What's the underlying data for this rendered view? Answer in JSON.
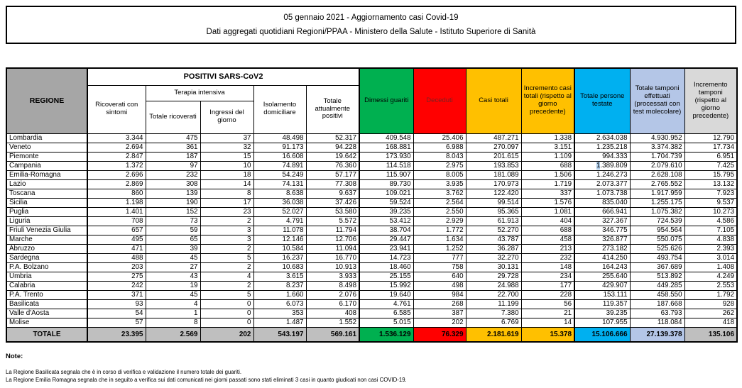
{
  "title": {
    "line1": "05 gennaio 2021 - Aggiornamento casi Covid-19",
    "line2": "Dati aggregati quotidiani Regioni/PPAA - Ministero della Salute - Istituto Superiore di Sanità"
  },
  "table": {
    "header": {
      "regione": "REGIONE",
      "positivi_group": "POSITIVI SARS-CoV2",
      "terapia_group": "Terapia intensiva",
      "ricoverati": "Ricoverati con sintomi",
      "totale_ricoverati": "Totale ricoverati",
      "ingressi": "Ingressi del giorno",
      "isolamento": "Isolamento domiciliare",
      "attualmente_positivi": "Totale attualmente positivi",
      "dimessi": "Dimessi guariti",
      "deceduti": "Deceduti",
      "casi_totali": "Casi totali",
      "incremento_casi": "Incremento casi totali (rispetto al giorno precedente)",
      "persone_testate": "Totale persone testate",
      "tamponi": "Totale tamponi effettuati (processati con test molecolare)",
      "incremento_tamponi": "Incremento tamponi (rispetto al giorno precedente)"
    },
    "rows": [
      {
        "regione": "Lombardia",
        "values": [
          "3.344",
          "475",
          "37",
          "48.498",
          "52.317",
          "409.548",
          "25.406",
          "487.271",
          "1.338",
          "2.634.038",
          "4.930.952",
          "12.790"
        ]
      },
      {
        "regione": "Veneto",
        "values": [
          "2.694",
          "361",
          "32",
          "91.173",
          "94.228",
          "168.881",
          "6.988",
          "270.097",
          "3.151",
          "1.235.218",
          "3.374.382",
          "17.734"
        ]
      },
      {
        "regione": "Piemonte",
        "values": [
          "2.847",
          "187",
          "15",
          "16.608",
          "19.642",
          "173.930",
          "8.043",
          "201.615",
          "1.109",
          "994.333",
          "1.704.739",
          "6.951"
        ]
      },
      {
        "regione": "Campania",
        "values": [
          "1.372",
          "97",
          "10",
          "74.891",
          "76.360",
          "114.518",
          "2.975",
          "193.853",
          "688",
          "1.389.809",
          "2.079.610",
          "7.425"
        ]
      },
      {
        "regione": "Emilia-Romagna",
        "values": [
          "2.696",
          "232",
          "18",
          "54.249",
          "57.177",
          "115.907",
          "8.005",
          "181.089",
          "1.506",
          "1.246.273",
          "2.628.108",
          "15.795"
        ]
      },
      {
        "regione": "Lazio",
        "values": [
          "2.869",
          "308",
          "14",
          "74.131",
          "77.308",
          "89.730",
          "3.935",
          "170.973",
          "1.719",
          "2.073.377",
          "2.765.552",
          "13.132"
        ]
      },
      {
        "regione": "Toscana",
        "values": [
          "860",
          "139",
          "8",
          "8.638",
          "9.637",
          "109.021",
          "3.762",
          "122.420",
          "337",
          "1.073.738",
          "1.917.959",
          "7.923"
        ]
      },
      {
        "regione": "Sicilia",
        "values": [
          "1.198",
          "190",
          "17",
          "36.038",
          "37.426",
          "59.524",
          "2.564",
          "99.514",
          "1.576",
          "835.040",
          "1.255.175",
          "9.537"
        ]
      },
      {
        "regione": "Puglia",
        "values": [
          "1.401",
          "152",
          "23",
          "52.027",
          "53.580",
          "39.235",
          "2.550",
          "95.365",
          "1.081",
          "666.941",
          "1.075.382",
          "10.273"
        ]
      },
      {
        "regione": "Liguria",
        "values": [
          "708",
          "73",
          "2",
          "4.791",
          "5.572",
          "53.412",
          "2.929",
          "61.913",
          "404",
          "327.367",
          "724.539",
          "4.586"
        ]
      },
      {
        "regione": "Friuli Venezia Giulia",
        "values": [
          "657",
          "59",
          "3",
          "11.078",
          "11.794",
          "38.704",
          "1.772",
          "52.270",
          "688",
          "346.775",
          "954.564",
          "7.105"
        ]
      },
      {
        "regione": "Marche",
        "values": [
          "495",
          "65",
          "3",
          "12.146",
          "12.706",
          "29.447",
          "1.634",
          "43.787",
          "458",
          "326.877",
          "550.075",
          "4.838"
        ]
      },
      {
        "regione": "Abruzzo",
        "values": [
          "471",
          "39",
          "2",
          "10.584",
          "11.094",
          "23.941",
          "1.252",
          "36.287",
          "213",
          "273.182",
          "525.626",
          "2.393"
        ]
      },
      {
        "regione": "Sardegna",
        "values": [
          "488",
          "45",
          "5",
          "16.237",
          "16.770",
          "14.723",
          "777",
          "32.270",
          "232",
          "414.250",
          "493.754",
          "3.014"
        ]
      },
      {
        "regione": "P.A. Bolzano",
        "values": [
          "203",
          "27",
          "2",
          "10.683",
          "10.913",
          "18.460",
          "758",
          "30.131",
          "148",
          "164.243",
          "367.689",
          "1.408"
        ]
      },
      {
        "regione": "Umbria",
        "values": [
          "275",
          "43",
          "4",
          "3.615",
          "3.933",
          "25.155",
          "640",
          "29.728",
          "234",
          "255.640",
          "513.892",
          "4.249"
        ]
      },
      {
        "regione": "Calabria",
        "values": [
          "242",
          "19",
          "2",
          "8.237",
          "8.498",
          "15.992",
          "498",
          "24.988",
          "177",
          "429.907",
          "449.285",
          "2.553"
        ]
      },
      {
        "regione": "P.A. Trento",
        "values": [
          "371",
          "45",
          "5",
          "1.660",
          "2.076",
          "19.640",
          "984",
          "22.700",
          "228",
          "153.111",
          "458.550",
          "1.792"
        ]
      },
      {
        "regione": "Basilicata",
        "values": [
          "93",
          "4",
          "0",
          "6.073",
          "6.170",
          "4.761",
          "268",
          "11.199",
          "56",
          "119.357",
          "187.668",
          "928"
        ]
      },
      {
        "regione": "Valle d'Aosta",
        "values": [
          "54",
          "1",
          "0",
          "353",
          "408",
          "6.585",
          "387",
          "7.380",
          "21",
          "39.235",
          "63.793",
          "262"
        ]
      },
      {
        "regione": "Molise",
        "values": [
          "57",
          "8",
          "0",
          "1.487",
          "1.552",
          "5.015",
          "202",
          "6.769",
          "14",
          "107.955",
          "118.084",
          "418"
        ]
      }
    ],
    "totale": {
      "label": "TOTALE",
      "values": [
        "23.395",
        "2.569",
        "202",
        "543.197",
        "569.161",
        "1.536.129",
        "76.329",
        "2.181.619",
        "15.378",
        "15.106.666",
        "27.139.378",
        "135.106"
      ]
    }
  },
  "highlight_artifact": {
    "region": "Campania",
    "value_index": 9
  },
  "notes": {
    "heading": "Note:",
    "items": [
      "La Regione Basilicata segnala che è in corso di verifica e validazione il numero totale dei guariti.",
      "La Regione Emilia  Romagna segnala che in seguito a verifica sui dati comunicati nei giorni passati sono stati eliminati 3 casi in quanto giudicati non casi COVID-19."
    ]
  },
  "colors": {
    "header_gray": "#a6a6a6",
    "totale_gray": "#bfbfbf",
    "dimessi_green": "#00b050",
    "deceduti_red": "#ff0000",
    "casi_gold": "#ffc000",
    "testate_cyan": "#00b0f0",
    "tamponi_periwinkle": "#b4c6e7",
    "incremento_lightgray": "#d9d9d9"
  }
}
